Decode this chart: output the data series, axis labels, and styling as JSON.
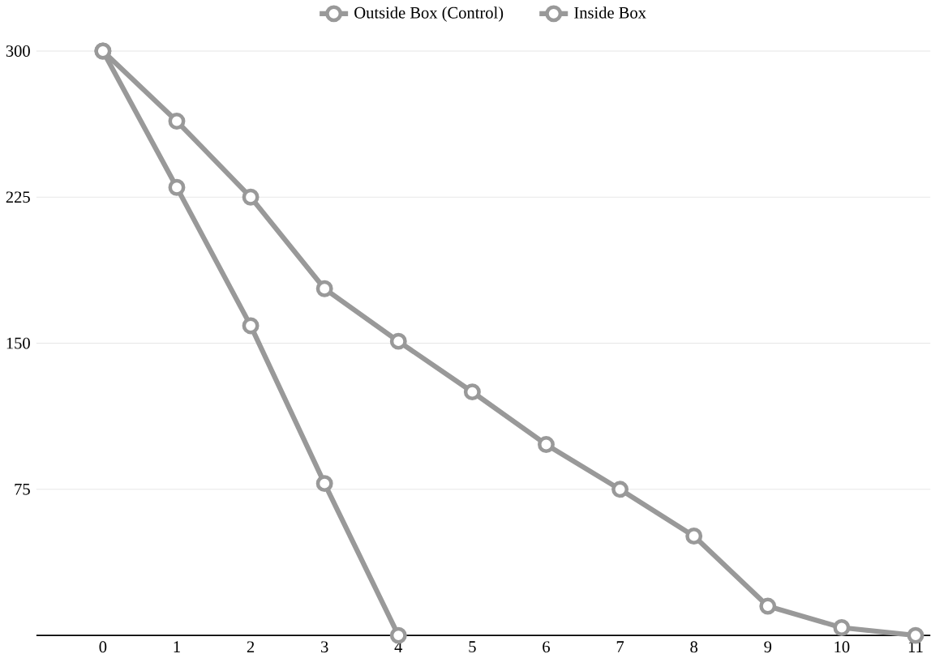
{
  "chart_data": {
    "type": "line",
    "x": [
      0,
      1,
      2,
      3,
      4,
      5,
      6,
      7,
      8,
      9,
      10,
      11
    ],
    "series": [
      {
        "name": "Outside Box (Control)",
        "color": "#999999",
        "values": [
          300,
          264,
          225,
          178,
          151,
          125,
          98,
          75,
          51,
          15,
          4,
          0
        ]
      },
      {
        "name": "Inside Box",
        "color": "#999999",
        "values": [
          300,
          230,
          159,
          78,
          0,
          null,
          null,
          null,
          null,
          null,
          null,
          null
        ]
      }
    ],
    "xlim": [
      -0.9,
      11.2
    ],
    "ylim": [
      0,
      300
    ],
    "xticks": [
      0,
      1,
      2,
      3,
      4,
      5,
      6,
      7,
      8,
      9,
      10,
      11
    ],
    "yticks": [
      75,
      150,
      225,
      300
    ],
    "grid": "y",
    "legend": "top",
    "marker": "circle",
    "line_style": "solid"
  }
}
